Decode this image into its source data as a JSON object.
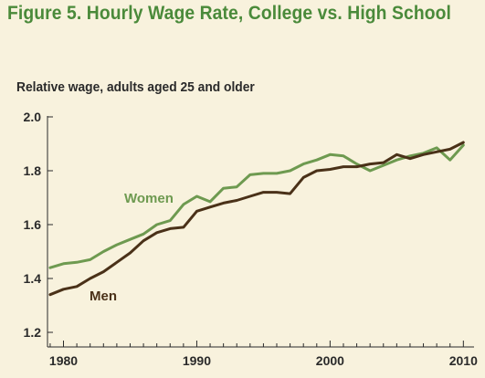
{
  "figure": {
    "title": "Figure 5. Hourly Wage Rate, College vs. High School"
  },
  "chart_data": {
    "type": "line",
    "title": "Figure 5. Hourly Wage Rate, College vs. High School",
    "ylabel": "Relative wage, adults aged 25 and older",
    "xlabel": "",
    "xlim": [
      1978.8,
      2010.8
    ],
    "ylim": [
      1.2,
      2.0
    ],
    "xticks": [
      1980,
      1990,
      2000,
      2010
    ],
    "yticks": [
      1.2,
      1.4,
      1.6,
      1.8,
      2.0
    ],
    "ytick_labels": [
      "1.2",
      "1.4",
      "1.6",
      "1.8",
      "2.0"
    ],
    "x": [
      1979,
      1980,
      1981,
      1982,
      1983,
      1984,
      1985,
      1986,
      1987,
      1988,
      1989,
      1990,
      1991,
      1992,
      1993,
      1994,
      1995,
      1996,
      1997,
      1998,
      1999,
      2000,
      2001,
      2002,
      2003,
      2004,
      2005,
      2006,
      2007,
      2008,
      2009,
      2010
    ],
    "series": [
      {
        "name": "Women",
        "color": "#6e9a50",
        "values": [
          1.44,
          1.455,
          1.46,
          1.47,
          1.5,
          1.525,
          1.545,
          1.565,
          1.6,
          1.615,
          1.675,
          1.705,
          1.685,
          1.735,
          1.74,
          1.785,
          1.79,
          1.79,
          1.8,
          1.825,
          1.84,
          1.86,
          1.855,
          1.825,
          1.8,
          1.82,
          1.84,
          1.855,
          1.865,
          1.885,
          1.84,
          1.895
        ]
      },
      {
        "name": "Men",
        "color": "#4a3118",
        "values": [
          1.34,
          1.36,
          1.37,
          1.4,
          1.425,
          1.46,
          1.495,
          1.54,
          1.57,
          1.585,
          1.59,
          1.65,
          1.665,
          1.68,
          1.69,
          1.705,
          1.72,
          1.72,
          1.715,
          1.775,
          1.8,
          1.805,
          1.815,
          1.815,
          1.825,
          1.83,
          1.86,
          1.845,
          1.86,
          1.87,
          1.88,
          1.905
        ]
      }
    ],
    "grid": false,
    "legend": "inline labels"
  }
}
